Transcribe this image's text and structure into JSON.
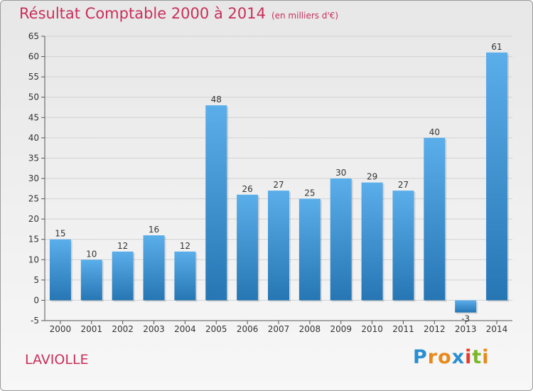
{
  "title": "Résultat Comptable 2000 à 2014",
  "title_unit": "(en milliers d'€)",
  "place": "LAVIOLLE",
  "logo": {
    "letters": [
      "P",
      "r",
      "o",
      "x",
      "i",
      "t",
      "i"
    ],
    "colors": [
      "#2a8fd0",
      "#e8891c",
      "#e8891c",
      "#2a8fd0",
      "#e83a2a",
      "#7ab82a",
      "#e8891c"
    ]
  },
  "colors": {
    "bar_top": "#5aaeea",
    "bar_bottom": "#2676b4",
    "axis": "#555555",
    "grid": "#d2d2d2",
    "title": "#c8305a"
  },
  "chart_data": {
    "type": "bar",
    "categories": [
      "2000",
      "2001",
      "2002",
      "2003",
      "2004",
      "2005",
      "2006",
      "2007",
      "2008",
      "2009",
      "2010",
      "2011",
      "2012",
      "2013",
      "2014"
    ],
    "values": [
      15,
      10,
      12,
      16,
      12,
      48,
      26,
      27,
      25,
      30,
      29,
      27,
      40,
      -3,
      61
    ],
    "ylim": [
      -5,
      65
    ],
    "yticks": [
      -5,
      0,
      5,
      10,
      15,
      20,
      25,
      30,
      35,
      40,
      45,
      50,
      55,
      60,
      65
    ],
    "grid": true,
    "xlabel": "",
    "ylabel": ""
  }
}
